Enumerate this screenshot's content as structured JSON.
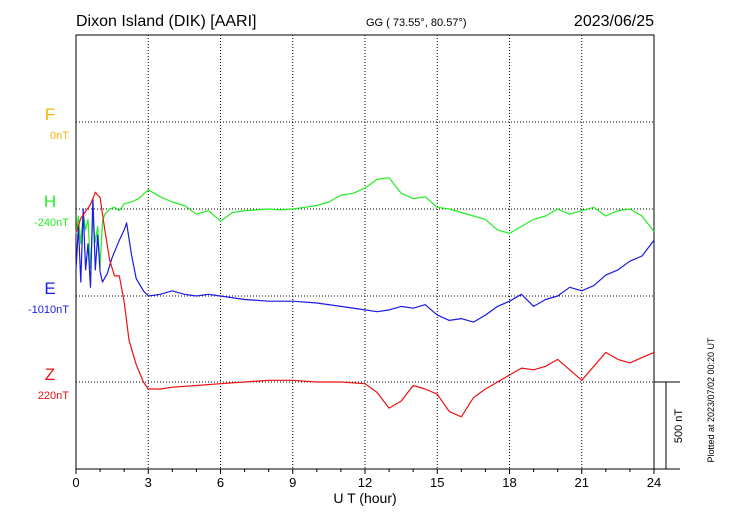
{
  "header": {
    "station": "Dixon Island (DIK)  [AARI]",
    "coords": "GG ( 73.55°,  80.57°)",
    "date": "2023/06/25"
  },
  "plotted_note": "Plotted at 2023/07/02 00:20 UT",
  "scale_label": "500 nT",
  "chart_data": {
    "type": "line",
    "xlabel": "U T (hour)",
    "xlim": [
      0,
      24
    ],
    "x_ticks": [
      0,
      3,
      6,
      9,
      12,
      15,
      18,
      21,
      24
    ],
    "grid": true,
    "scale_bar_nT": 500,
    "series": [
      {
        "name": "F",
        "baseline_label": "0nT",
        "color": "#f5b400",
        "x": [],
        "values": []
      },
      {
        "name": "H",
        "baseline_label": "-240nT",
        "color": "#22ee22",
        "x": [
          0,
          0.1,
          0.2,
          0.3,
          0.4,
          0.5,
          0.6,
          0.7,
          0.8,
          0.9,
          1.0,
          1.1,
          1.2,
          1.4,
          1.6,
          1.8,
          2.0,
          2.3,
          2.6,
          3.0,
          3.5,
          4.0,
          4.5,
          5.0,
          5.5,
          6.0,
          6.5,
          7.0,
          7.5,
          8.0,
          8.5,
          9.0,
          9.5,
          10.0,
          10.5,
          11.0,
          11.5,
          12.0,
          12.5,
          13.0,
          13.5,
          14.0,
          14.5,
          15.0,
          15.5,
          16.0,
          16.5,
          17.0,
          17.5,
          18.0,
          18.5,
          19.0,
          19.5,
          20.0,
          20.5,
          21.0,
          21.5,
          22.0,
          22.5,
          23.0,
          23.5,
          24.0
        ],
        "values": [
          -140,
          -40,
          -200,
          -20,
          -120,
          -60,
          -340,
          -50,
          -190,
          -100,
          -330,
          -70,
          -30,
          0,
          10,
          -10,
          30,
          40,
          60,
          110,
          70,
          40,
          20,
          -30,
          -10,
          -70,
          -20,
          -10,
          -5,
          0,
          -5,
          0,
          10,
          20,
          40,
          80,
          90,
          120,
          170,
          180,
          90,
          60,
          70,
          10,
          0,
          -20,
          -40,
          -60,
          -120,
          -140,
          -100,
          -60,
          -40,
          0,
          -30,
          -10,
          10,
          -40,
          -10,
          0,
          -40,
          -130
        ]
      },
      {
        "name": "E",
        "baseline_label": "-1010nT",
        "color": "#1a1ae6",
        "x": [
          0,
          0.1,
          0.2,
          0.3,
          0.4,
          0.5,
          0.6,
          0.7,
          0.8,
          0.9,
          1.0,
          1.1,
          1.3,
          1.5,
          1.8,
          2.0,
          2.1,
          2.3,
          2.5,
          2.8,
          3.0,
          3.5,
          4.0,
          4.5,
          5.0,
          5.5,
          6.0,
          7.0,
          8.0,
          9.0,
          10.0,
          11.0,
          12.0,
          12.5,
          13.0,
          13.5,
          14.0,
          14.5,
          15.0,
          15.5,
          16.0,
          16.5,
          17.0,
          17.5,
          18.0,
          18.5,
          19.0,
          19.5,
          20.0,
          20.5,
          21.0,
          21.5,
          22.0,
          22.5,
          23.0,
          23.5,
          24.0
        ],
        "values": [
          150,
          400,
          80,
          500,
          150,
          300,
          50,
          560,
          150,
          350,
          140,
          80,
          130,
          220,
          320,
          380,
          420,
          240,
          100,
          30,
          0,
          10,
          30,
          10,
          0,
          10,
          0,
          -20,
          -30,
          -30,
          -40,
          -60,
          -80,
          -90,
          -80,
          -60,
          -70,
          -50,
          -110,
          -140,
          -130,
          -150,
          -110,
          -60,
          -30,
          10,
          -60,
          -20,
          0,
          50,
          30,
          60,
          120,
          150,
          200,
          230,
          320
        ]
      },
      {
        "name": "Z",
        "baseline_label": "220nT",
        "color": "#ee1111",
        "x": [
          0,
          0.2,
          0.4,
          0.6,
          0.8,
          1.0,
          1.2,
          1.4,
          1.6,
          1.8,
          2.0,
          2.2,
          2.5,
          2.8,
          3.0,
          3.5,
          4.0,
          5.0,
          6.0,
          7.0,
          8.0,
          9.0,
          10.0,
          11.0,
          12.0,
          12.5,
          13.0,
          13.5,
          14.0,
          14.5,
          15.0,
          15.5,
          16.0,
          16.5,
          17.0,
          17.5,
          18.0,
          18.5,
          19.0,
          19.5,
          20.0,
          20.5,
          21.0,
          21.5,
          22.0,
          22.5,
          23.0,
          23.5,
          24.0
        ],
        "values": [
          860,
          940,
          980,
          1020,
          1090,
          1060,
          870,
          700,
          610,
          610,
          460,
          240,
          100,
          0,
          -40,
          -40,
          -30,
          -20,
          -10,
          0,
          10,
          10,
          0,
          0,
          -10,
          -60,
          -150,
          -110,
          -20,
          -40,
          -70,
          -170,
          -200,
          -90,
          -40,
          0,
          40,
          80,
          70,
          90,
          130,
          70,
          10,
          90,
          170,
          130,
          110,
          140,
          170
        ]
      }
    ]
  }
}
